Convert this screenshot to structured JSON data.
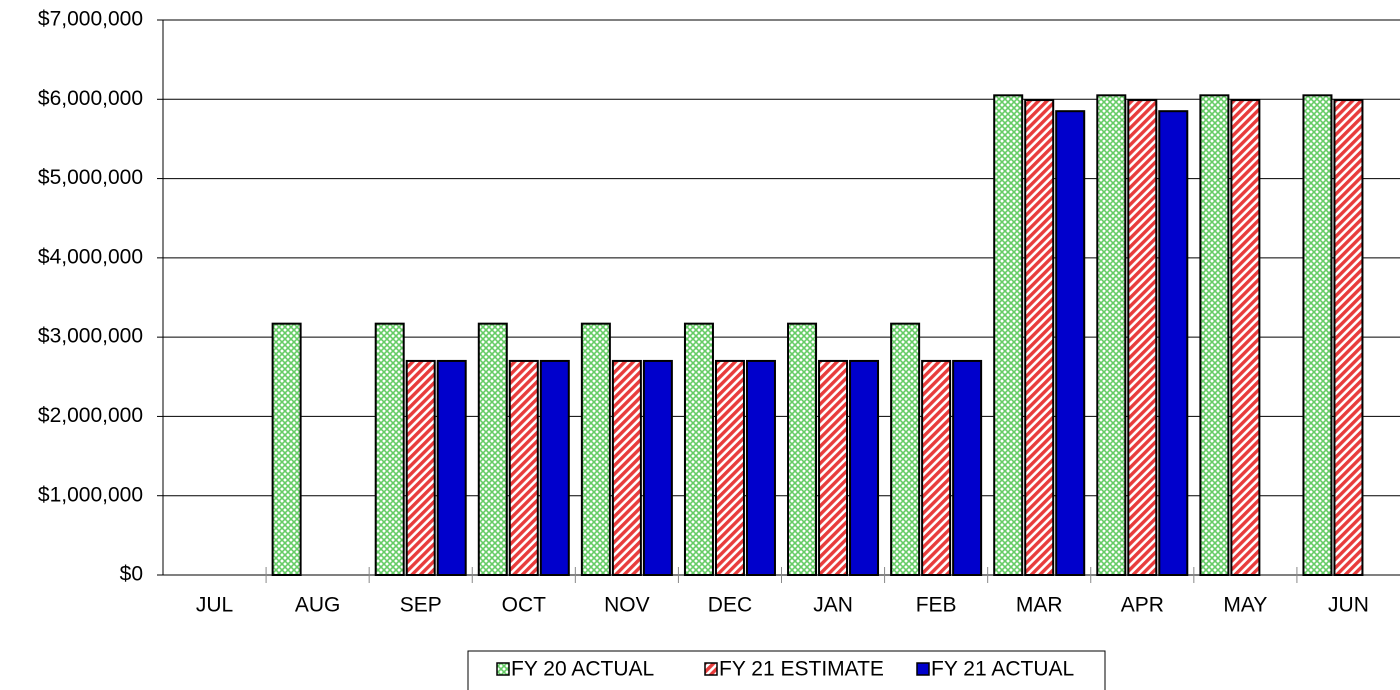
{
  "chart_data": {
    "type": "bar",
    "categories": [
      "JUL",
      "AUG",
      "SEP",
      "OCT",
      "NOV",
      "DEC",
      "JAN",
      "FEB",
      "MAR",
      "APR",
      "MAY",
      "JUN"
    ],
    "series": [
      {
        "name": "FY 20 ACTUAL",
        "color": "#66cc66",
        "values": [
          null,
          3170000,
          3170000,
          3170000,
          3170000,
          3170000,
          3170000,
          3170000,
          6050000,
          6050000,
          6050000,
          6050000
        ]
      },
      {
        "name": "FY 21 ESTIMATE",
        "color": "#e83c3c",
        "values": [
          null,
          null,
          2700000,
          2700000,
          2700000,
          2700000,
          2700000,
          2700000,
          5990000,
          5990000,
          5990000,
          5990000
        ]
      },
      {
        "name": "FY 21 ACTUAL",
        "color": "#0000cc",
        "values": [
          null,
          null,
          2700000,
          2700000,
          2700000,
          2700000,
          2700000,
          2700000,
          5850000,
          5850000,
          null,
          null
        ]
      }
    ],
    "ylim": [
      0,
      7000000
    ],
    "yticks": [
      {
        "value": 0,
        "label": "$0"
      },
      {
        "value": 1000000,
        "label": "$1,000,000"
      },
      {
        "value": 2000000,
        "label": "$2,000,000"
      },
      {
        "value": 3000000,
        "label": "$3,000,000"
      },
      {
        "value": 4000000,
        "label": "$4,000,000"
      },
      {
        "value": 5000000,
        "label": "$5,000,000"
      },
      {
        "value": 6000000,
        "label": "$6,000,000"
      },
      {
        "value": 7000000,
        "label": "$7,000,000"
      }
    ],
    "grid": true,
    "legend": "bottom"
  }
}
